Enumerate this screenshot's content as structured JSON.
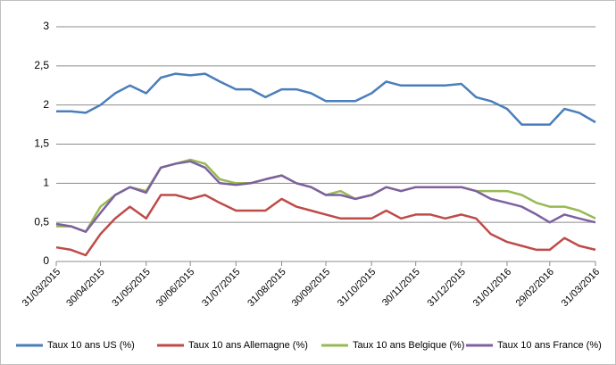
{
  "chart_data": {
    "type": "line",
    "x": [
      "31/03/2015",
      "10/04/2015",
      "20/04/2015",
      "30/04/2015",
      "10/05/2015",
      "20/05/2015",
      "31/05/2015",
      "10/06/2015",
      "20/06/2015",
      "30/06/2015",
      "10/07/2015",
      "20/07/2015",
      "31/07/2015",
      "10/08/2015",
      "20/08/2015",
      "31/08/2015",
      "10/09/2015",
      "20/09/2015",
      "30/09/2015",
      "10/10/2015",
      "20/10/2015",
      "31/10/2015",
      "10/11/2015",
      "20/11/2015",
      "30/11/2015",
      "10/12/2015",
      "20/12/2015",
      "31/12/2015",
      "10/01/2016",
      "20/01/2016",
      "31/01/2016",
      "10/02/2016",
      "20/02/2016",
      "29/02/2016",
      "10/03/2016",
      "20/03/2016",
      "31/03/2016"
    ],
    "series": [
      {
        "name": "Taux 10 ans US (%)",
        "color": "#4a7ebb",
        "values": [
          1.92,
          1.92,
          1.9,
          2.0,
          2.15,
          2.25,
          2.15,
          2.35,
          2.4,
          2.38,
          2.4,
          2.3,
          2.2,
          2.2,
          2.1,
          2.2,
          2.2,
          2.15,
          2.05,
          2.05,
          2.05,
          2.15,
          2.3,
          2.25,
          2.25,
          2.25,
          2.25,
          2.27,
          2.1,
          2.05,
          1.95,
          1.75,
          1.75,
          1.75,
          1.95,
          1.9,
          1.78
        ]
      },
      {
        "name": "Taux 10 ans Allemagne (%)",
        "color": "#be4b48",
        "values": [
          0.18,
          0.15,
          0.08,
          0.35,
          0.55,
          0.7,
          0.55,
          0.85,
          0.85,
          0.8,
          0.85,
          0.75,
          0.65,
          0.65,
          0.65,
          0.8,
          0.7,
          0.65,
          0.6,
          0.55,
          0.55,
          0.55,
          0.65,
          0.55,
          0.6,
          0.6,
          0.55,
          0.6,
          0.55,
          0.35,
          0.25,
          0.2,
          0.15,
          0.15,
          0.3,
          0.2,
          0.15
        ]
      },
      {
        "name": "Taux 10 ans Belgique (%)",
        "color": "#98b954",
        "values": [
          0.45,
          0.45,
          0.38,
          0.7,
          0.85,
          0.95,
          0.9,
          1.2,
          1.25,
          1.3,
          1.25,
          1.05,
          1.0,
          1.0,
          1.05,
          1.1,
          1.0,
          0.95,
          0.85,
          0.9,
          0.8,
          0.85,
          0.95,
          0.9,
          0.95,
          0.95,
          0.95,
          0.95,
          0.9,
          0.9,
          0.9,
          0.85,
          0.75,
          0.7,
          0.7,
          0.65,
          0.55
        ]
      },
      {
        "name": "Taux 10 ans France (%)",
        "color": "#7d60a0",
        "values": [
          0.48,
          0.45,
          0.38,
          0.62,
          0.85,
          0.95,
          0.88,
          1.2,
          1.25,
          1.28,
          1.2,
          1.0,
          0.98,
          1.0,
          1.05,
          1.1,
          1.0,
          0.95,
          0.85,
          0.85,
          0.8,
          0.85,
          0.95,
          0.9,
          0.95,
          0.95,
          0.95,
          0.95,
          0.9,
          0.8,
          0.75,
          0.7,
          0.6,
          0.5,
          0.6,
          0.55,
          0.5
        ]
      }
    ],
    "xlim": [
      "31/03/2015",
      "31/03/2016"
    ],
    "xticks": [
      "31/03/2015",
      "30/04/2015",
      "31/05/2015",
      "30/06/2015",
      "31/07/2015",
      "31/08/2015",
      "30/09/2015",
      "31/10/2015",
      "30/11/2015",
      "31/12/2015",
      "31/01/2016",
      "29/02/2016",
      "31/03/2016"
    ],
    "ylim": [
      0,
      3
    ],
    "yticks": [
      0,
      {
        "value": 0.5,
        "label": "0,5"
      },
      1,
      {
        "value": 1.5,
        "label": "1,5"
      },
      2,
      {
        "value": 2.5,
        "label": "2,5"
      },
      3
    ],
    "grid": true,
    "legend": "bottom"
  }
}
